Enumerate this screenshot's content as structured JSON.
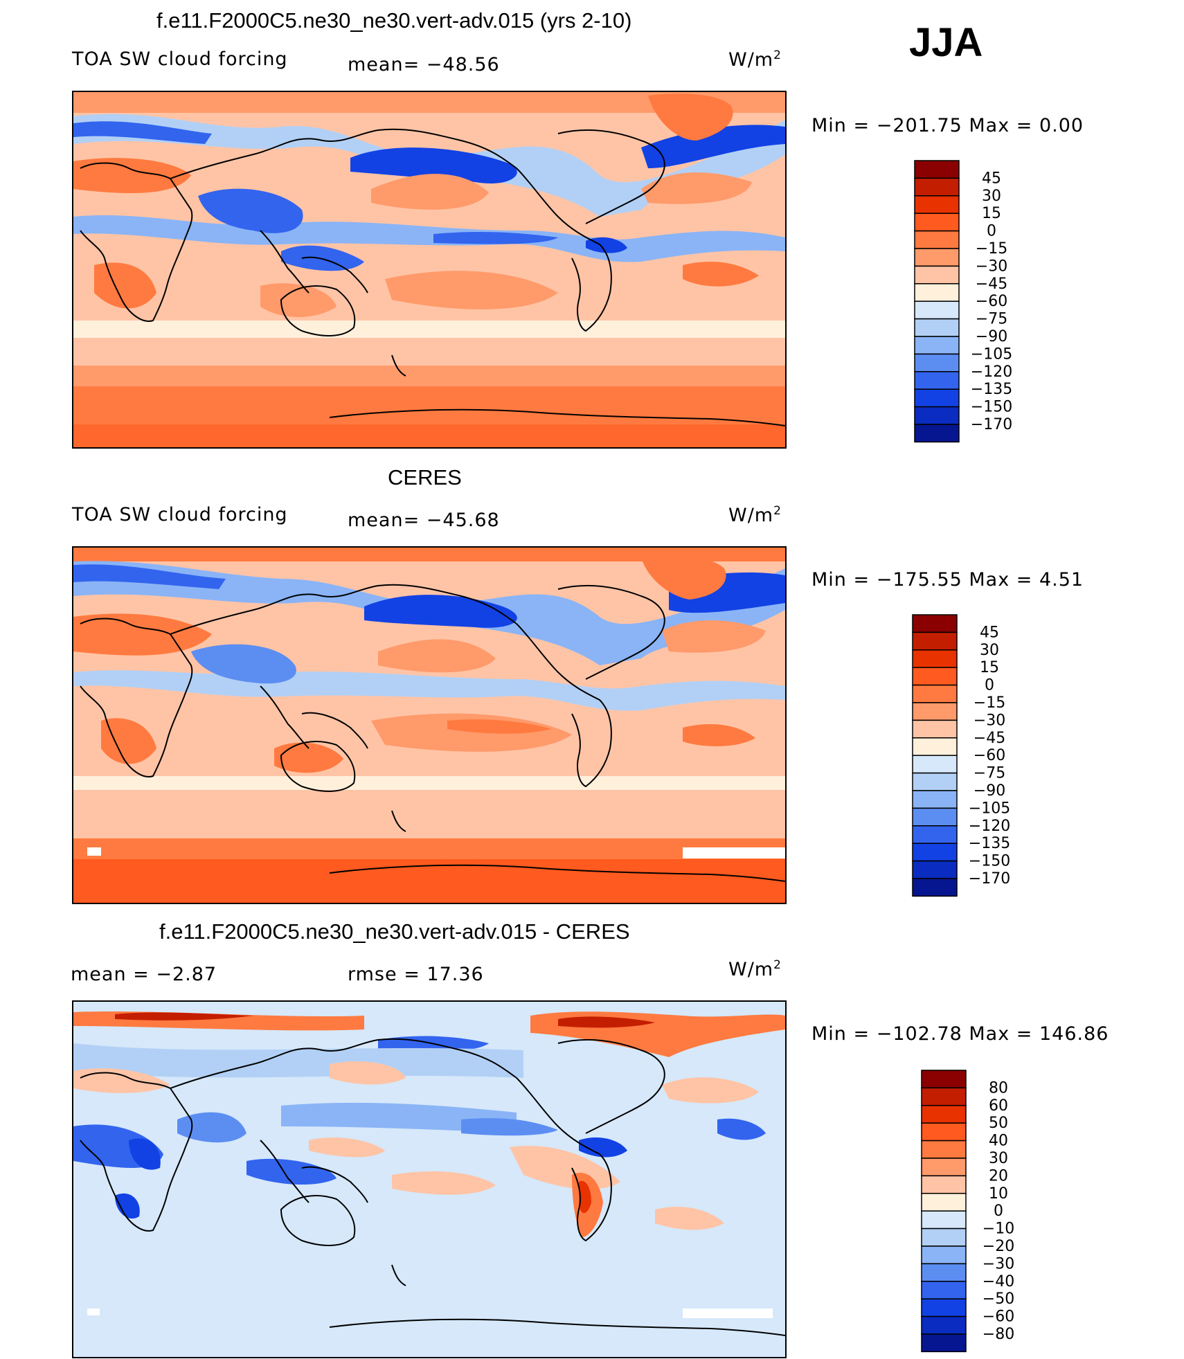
{
  "season": "JJA",
  "panels": [
    {
      "id": "model",
      "title": "f.e11.F2000C5.ne30_ne30.vert-adv.015 (yrs 2-10)",
      "left_label": "TOA SW cloud forcing",
      "mid_label": "mean=  −48.56",
      "units": "W/m",
      "units_sup": "2",
      "range_text": "Min  =  −201.75  Max  =      0.00",
      "palette": "abs"
    },
    {
      "id": "obs",
      "title": "CERES",
      "left_label": "TOA SW cloud forcing",
      "mid_label": "mean=  −45.68",
      "units": "W/m",
      "units_sup": "2",
      "range_text": "Min  =  −175.55  Max  =      4.51",
      "palette": "abs"
    },
    {
      "id": "diff",
      "title": "f.e11.F2000C5.ne30_ne30.vert-adv.015 - CERES",
      "left_label": "mean  =     −2.87",
      "mid_label": "rmse  =    17.36",
      "units": "W/m",
      "units_sup": "2",
      "range_text": "Min  =  −102.78  Max  =  146.86",
      "palette": "diff"
    }
  ],
  "chart_data": [
    {
      "type": "heatmap",
      "title": "f.e11.F2000C5.ne30_ne30.vert-adv.015 (yrs 2-10)",
      "variable": "TOA SW cloud forcing",
      "units": "W/m2",
      "mean": -48.56,
      "min": -201.75,
      "max": 0.0,
      "colorbar_levels": [
        -170,
        -150,
        -135,
        -120,
        -105,
        -90,
        -75,
        -60,
        -45,
        -30,
        -15,
        0,
        15,
        30,
        45
      ]
    },
    {
      "type": "heatmap",
      "title": "CERES",
      "variable": "TOA SW cloud forcing",
      "units": "W/m2",
      "mean": -45.68,
      "min": -175.55,
      "max": 4.51,
      "colorbar_levels": [
        -170,
        -150,
        -135,
        -120,
        -105,
        -90,
        -75,
        -60,
        -45,
        -30,
        -15,
        0,
        15,
        30,
        45
      ]
    },
    {
      "type": "heatmap",
      "title": "f.e11.F2000C5.ne30_ne30.vert-adv.015 - CERES",
      "units": "W/m2",
      "mean": -2.87,
      "rmse": 17.36,
      "min": -102.78,
      "max": 146.86,
      "colorbar_levels": [
        -80,
        -60,
        -50,
        -40,
        -30,
        -20,
        -10,
        0,
        10,
        20,
        30,
        40,
        50,
        60,
        80
      ]
    }
  ],
  "colorbars": {
    "abs": {
      "colors_top_to_bottom": [
        "#8b0000",
        "#c41e00",
        "#e83200",
        "#ff5a1f",
        "#ff7a40",
        "#ff9a6a",
        "#ffc4a6",
        "#fff0dc",
        "#d6e8fa",
        "#b2d0f5",
        "#8ab4f6",
        "#5c8ef2",
        "#3264ee",
        "#1242e4",
        "#0a2cc0",
        "#061690"
      ],
      "labels_top_to_bottom": [
        "45",
        "30",
        "15",
        "0",
        "−15",
        "−30",
        "−45",
        "−60",
        "−75",
        "−90",
        "−105",
        "−120",
        "−135",
        "−150",
        "−170"
      ]
    },
    "diff": {
      "colors_top_to_bottom": [
        "#8b0000",
        "#c41e00",
        "#e83200",
        "#ff5a1f",
        "#ff7a40",
        "#ff9a6a",
        "#ffc4a6",
        "#fff0dc",
        "#d6e8fa",
        "#b2d0f5",
        "#8ab4f6",
        "#5c8ef2",
        "#3264ee",
        "#1242e4",
        "#0a2cc0",
        "#061690"
      ],
      "labels_top_to_bottom": [
        "80",
        "60",
        "50",
        "40",
        "30",
        "20",
        "10",
        "0",
        "−10",
        "−20",
        "−30",
        "−40",
        "−50",
        "−60",
        "−80"
      ]
    }
  }
}
